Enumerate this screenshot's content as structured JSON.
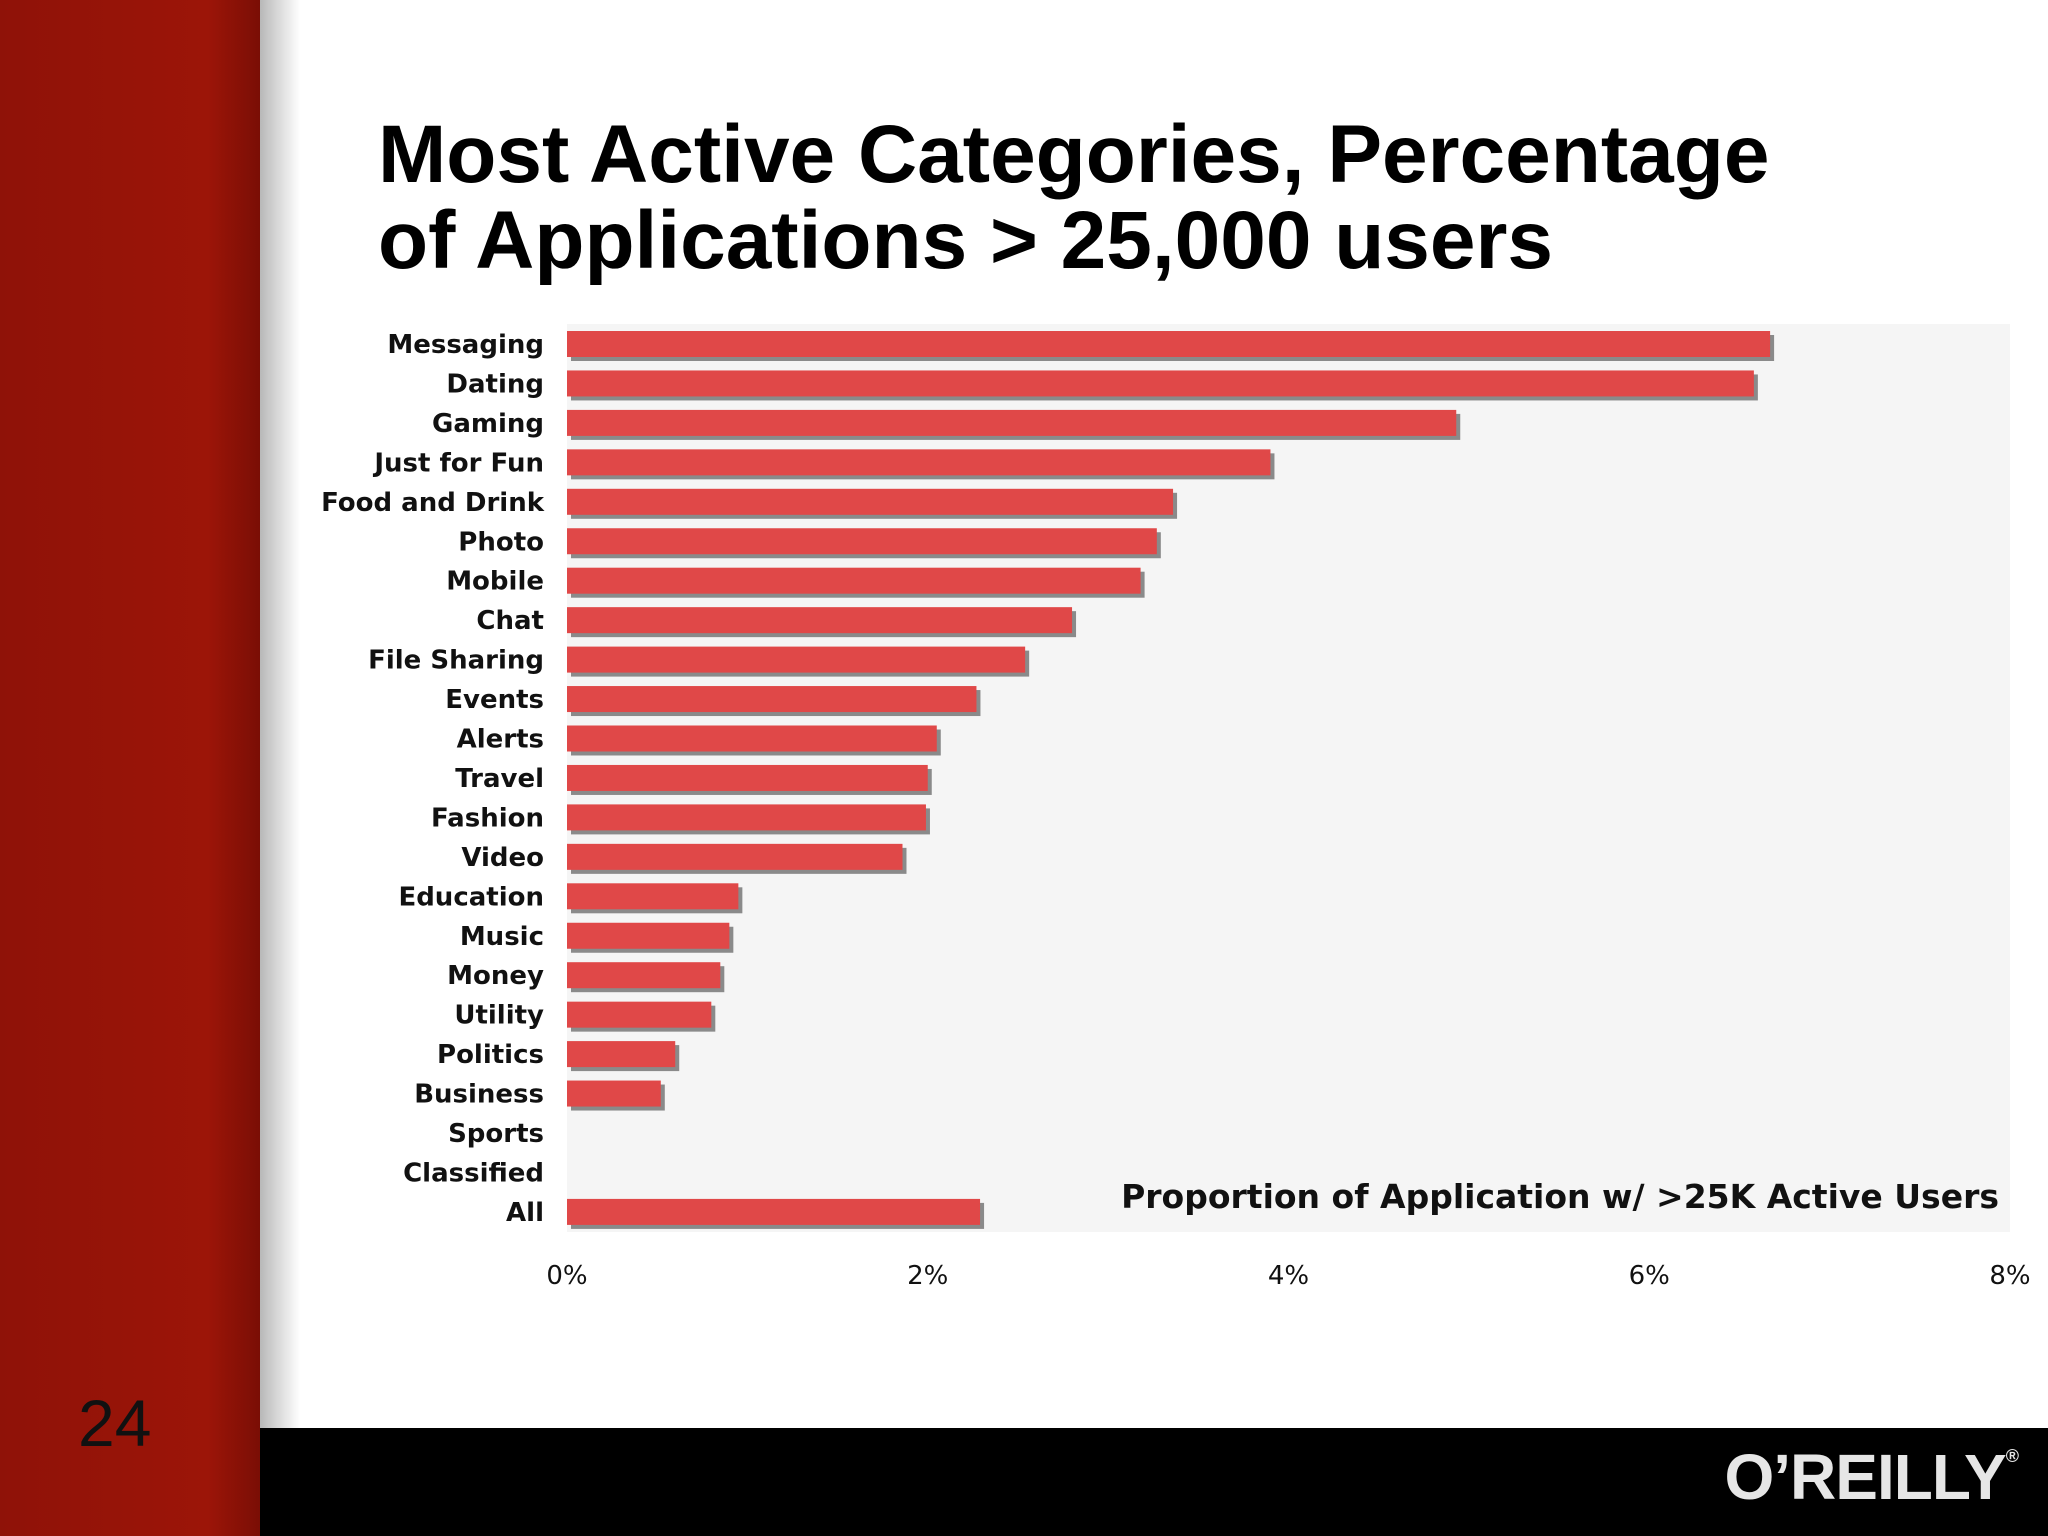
{
  "slide": {
    "title_line1": "Most Active Categories, Percentage",
    "title_line2": "of Applications > 25,000 users",
    "page_number": "24",
    "logo": "O’REILLY",
    "logo_mark": "®"
  },
  "colors": {
    "bar": "#e04848",
    "bar_shadow": "#8a8a8a",
    "plot_bg": "#f5f5f5",
    "sidebar": "#9c1508",
    "footer": "#000000"
  },
  "chart_data": {
    "type": "bar",
    "orientation": "horizontal",
    "annotation": "Proportion of Application w/ >25K Active Users",
    "xlim": [
      0,
      8
    ],
    "x_ticks": [
      "0%",
      "2%",
      "4%",
      "6%",
      "8%"
    ],
    "grid": false,
    "categories": [
      "Messaging",
      "Dating",
      "Gaming",
      "Just for Fun",
      "Food and Drink",
      "Photo",
      "Mobile",
      "Chat",
      "File Sharing",
      "Events",
      "Alerts",
      "Travel",
      "Fashion",
      "Video",
      "Education",
      "Music",
      "Money",
      "Utility",
      "Politics",
      "Business",
      "Sports",
      "Classified",
      "All"
    ],
    "values": [
      6.67,
      6.58,
      4.93,
      3.9,
      3.36,
      3.27,
      3.18,
      2.8,
      2.54,
      2.27,
      2.05,
      2.0,
      1.99,
      1.86,
      0.95,
      0.9,
      0.85,
      0.8,
      0.6,
      0.52,
      0,
      0,
      2.29
    ]
  }
}
